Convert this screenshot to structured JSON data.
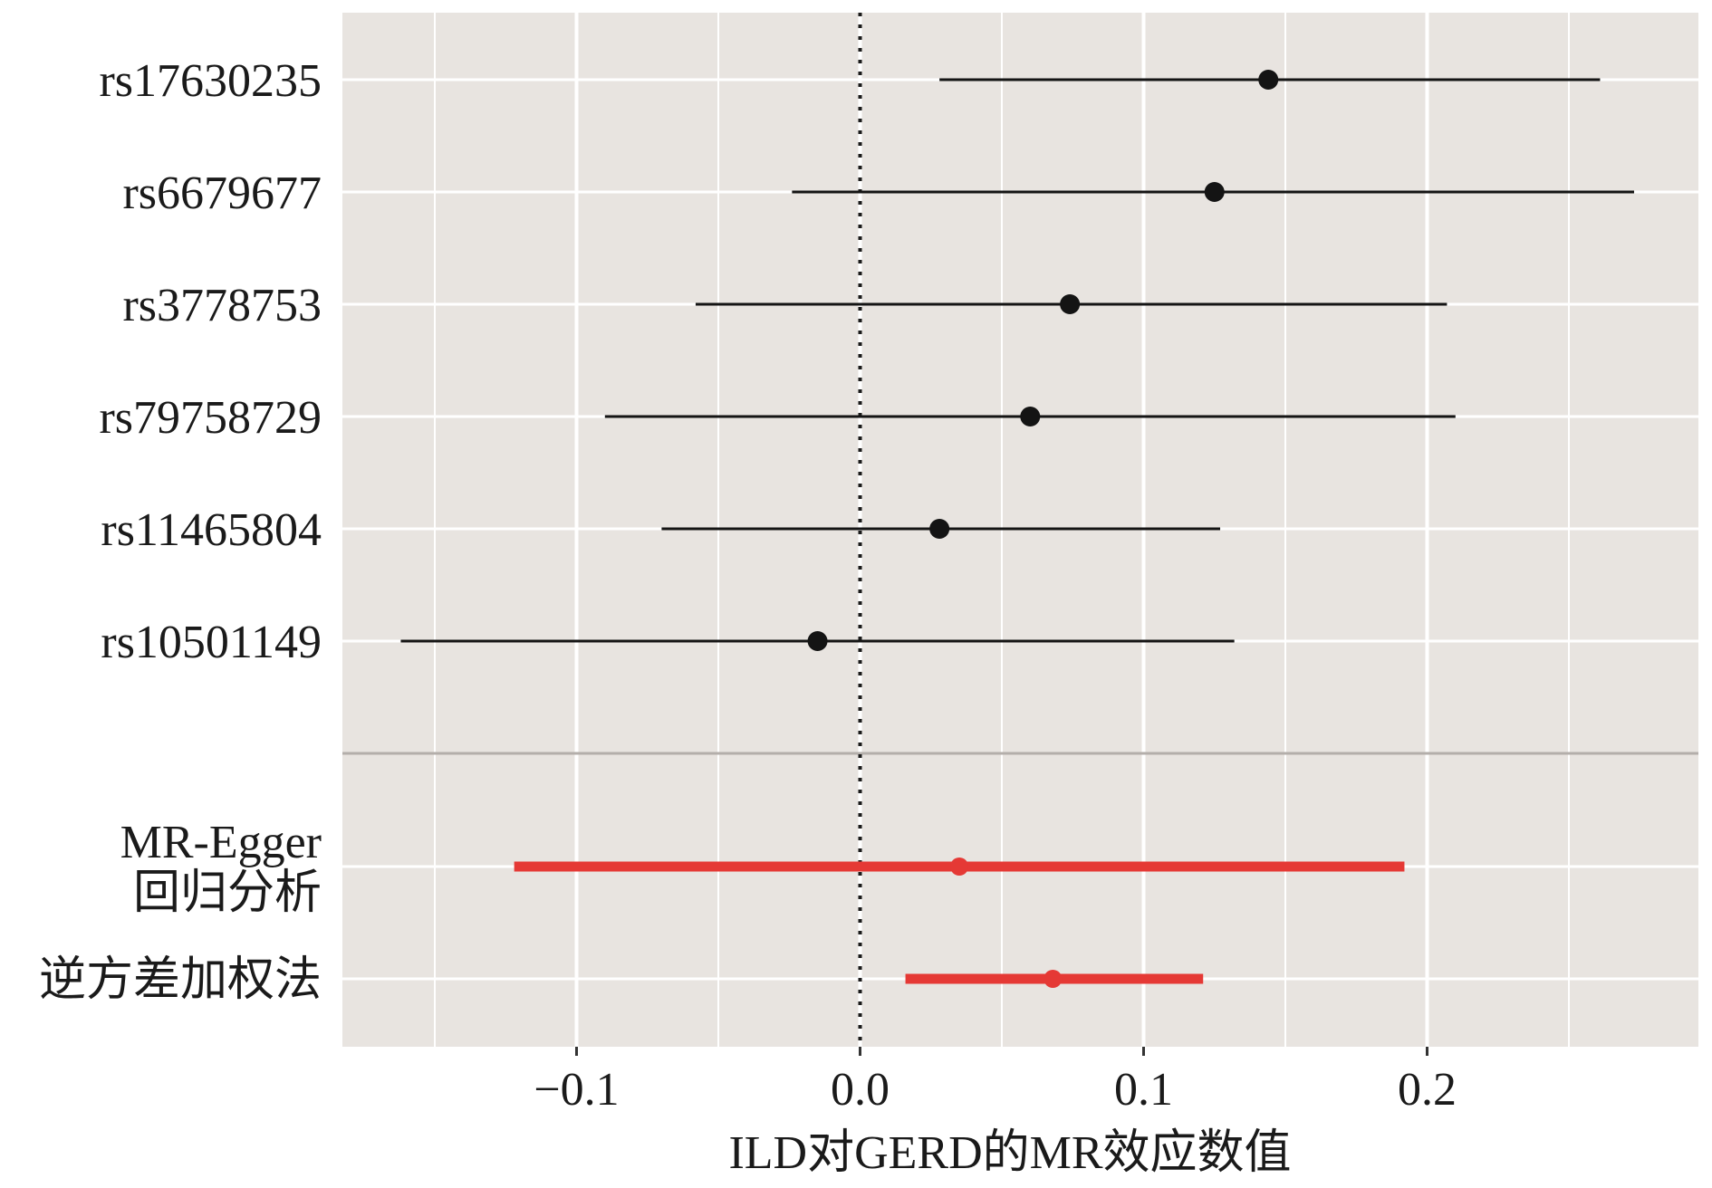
{
  "chart_data": {
    "type": "forest",
    "xlabel": "ILD对GERD的MR效应数值",
    "x_ticks": [
      {
        "value": -0.1,
        "label": "−0.1"
      },
      {
        "value": 0.0,
        "label": "0.0"
      },
      {
        "value": 0.1,
        "label": "0.1"
      },
      {
        "value": 0.2,
        "label": "0.2"
      }
    ],
    "xlim": [
      -0.19,
      0.29
    ],
    "reference_line": 0,
    "grid": true,
    "snps": [
      {
        "label": "rs17630235",
        "estimate": 0.144,
        "lower": 0.028,
        "upper": 0.261
      },
      {
        "label": "rs6679677",
        "estimate": 0.125,
        "lower": -0.024,
        "upper": 0.273
      },
      {
        "label": "rs3778753",
        "estimate": 0.074,
        "lower": -0.058,
        "upper": 0.207
      },
      {
        "label": "rs79758729",
        "estimate": 0.06,
        "lower": -0.09,
        "upper": 0.21
      },
      {
        "label": "rs11465804",
        "estimate": 0.028,
        "lower": -0.07,
        "upper": 0.127
      },
      {
        "label": "rs10501149",
        "estimate": -0.015,
        "lower": -0.162,
        "upper": 0.132
      }
    ],
    "methods": [
      {
        "label_lines": [
          "MR-Egger",
          "回归分析"
        ],
        "estimate": 0.035,
        "lower": -0.122,
        "upper": 0.192
      },
      {
        "label_lines": [
          "逆方差加权法"
        ],
        "estimate": 0.068,
        "lower": 0.016,
        "upper": 0.121
      }
    ],
    "colors": {
      "panel_bg": "#e8e4e0",
      "grid": "#ffffff",
      "snp": "#141414",
      "method": "#e53935",
      "separator": "#b3aeaa"
    }
  }
}
